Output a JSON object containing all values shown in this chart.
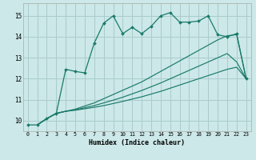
{
  "xlabel": "Humidex (Indice chaleur)",
  "bg_color": "#cce8e8",
  "grid_color": "#aacccc",
  "line_color": "#1a7a6a",
  "xlim": [
    -0.5,
    23.5
  ],
  "ylim": [
    9.5,
    15.6
  ],
  "xticks": [
    0,
    1,
    2,
    3,
    4,
    5,
    6,
    7,
    8,
    9,
    10,
    11,
    12,
    13,
    14,
    15,
    16,
    17,
    18,
    19,
    20,
    21,
    22,
    23
  ],
  "yticks": [
    10,
    11,
    12,
    13,
    14,
    15
  ],
  "c1x": [
    0,
    1,
    2,
    3,
    4,
    5,
    6,
    7,
    8,
    9,
    10,
    11,
    12,
    13,
    14,
    15,
    16,
    17,
    18,
    19,
    20,
    21,
    22,
    23
  ],
  "c1y": [
    9.8,
    9.8,
    10.1,
    10.35,
    12.45,
    12.35,
    12.28,
    13.7,
    14.65,
    15.0,
    14.15,
    14.45,
    14.15,
    14.5,
    15.0,
    15.15,
    14.7,
    14.7,
    14.75,
    15.0,
    14.1,
    14.0,
    14.15,
    12.0
  ],
  "c2x": [
    1,
    2,
    3,
    4,
    5,
    6,
    7,
    8,
    9,
    10,
    11,
    12,
    13,
    14,
    15,
    16,
    17,
    18,
    19,
    20,
    21,
    22,
    23
  ],
  "c2y": [
    9.8,
    10.1,
    10.35,
    10.45,
    10.55,
    10.7,
    10.85,
    11.05,
    11.25,
    11.45,
    11.65,
    11.85,
    12.1,
    12.35,
    12.6,
    12.85,
    13.1,
    13.35,
    13.6,
    13.85,
    14.05,
    14.1,
    12.0
  ],
  "c3x": [
    1,
    2,
    3,
    4,
    5,
    6,
    7,
    8,
    9,
    10,
    11,
    12,
    13,
    14,
    15,
    16,
    17,
    18,
    19,
    20,
    21,
    22,
    23
  ],
  "c3y": [
    9.8,
    10.1,
    10.35,
    10.45,
    10.52,
    10.62,
    10.72,
    10.85,
    10.98,
    11.12,
    11.28,
    11.44,
    11.62,
    11.8,
    12.0,
    12.2,
    12.4,
    12.6,
    12.8,
    13.0,
    13.2,
    12.8,
    12.0
  ],
  "c4x": [
    1,
    2,
    3,
    4,
    5,
    6,
    7,
    8,
    9,
    10,
    11,
    12,
    13,
    14,
    15,
    16,
    17,
    18,
    19,
    20,
    21,
    22,
    23
  ],
  "c4y": [
    9.8,
    10.1,
    10.35,
    10.45,
    10.5,
    10.57,
    10.64,
    10.72,
    10.82,
    10.92,
    11.03,
    11.14,
    11.27,
    11.4,
    11.55,
    11.7,
    11.85,
    12.0,
    12.15,
    12.3,
    12.45,
    12.55,
    12.0
  ]
}
